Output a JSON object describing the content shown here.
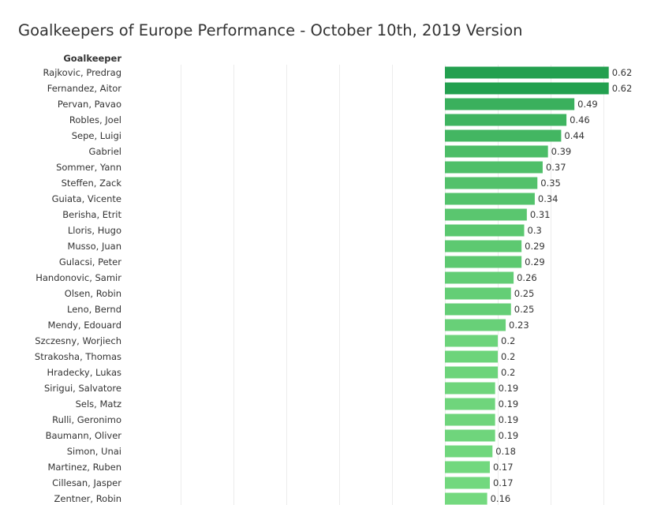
{
  "chart_data": {
    "type": "bar",
    "orientation": "horizontal",
    "title": "Goalkeepers of Europe Performance - October 10th, 2019 Version",
    "row_header": "Goalkeeper",
    "categories": [
      "Rajkovic, Predrag",
      "Fernandez, Aitor",
      "Pervan, Pavao",
      "Robles, Joel",
      "Sepe, Luigi",
      "Gabriel",
      "Sommer, Yann",
      "Steffen, Zack",
      "Guiata, Vicente",
      "Berisha, Etrit",
      "Lloris, Hugo",
      "Musso, Juan",
      "Gulacsi, Peter",
      "Handonovic, Samir",
      "Olsen, Robin",
      "Leno, Bernd",
      "Mendy, Edouard",
      "Szczesny, Worjiech",
      "Strakosha, Thomas",
      "Hradecky, Lukas",
      "Sirigui, Salvatore",
      "Sels, Matz",
      "Rulli, Geronimo",
      "Baumann, Oliver",
      "Simon, Unai",
      "Martinez, Ruben",
      "Cillesan, Jasper",
      "Zentner, Robin"
    ],
    "values": [
      0.62,
      0.62,
      0.49,
      0.46,
      0.44,
      0.39,
      0.37,
      0.35,
      0.34,
      0.31,
      0.3,
      0.29,
      0.29,
      0.26,
      0.25,
      0.25,
      0.23,
      0.2,
      0.2,
      0.2,
      0.19,
      0.19,
      0.19,
      0.19,
      0.18,
      0.17,
      0.17,
      0.16
    ],
    "value_labels": [
      "0.62",
      "0.62",
      "0.49",
      "0.46",
      "0.44",
      "0.39",
      "0.37",
      "0.35",
      "0.34",
      "0.31",
      "0.3",
      "0.29",
      "0.29",
      "0.26",
      "0.25",
      "0.25",
      "0.23",
      "0.2",
      "0.2",
      "0.2",
      "0.19",
      "0.19",
      "0.19",
      "0.19",
      "0.18",
      "0.17",
      "0.17",
      "0.16"
    ],
    "xlim": [
      -1.2,
      0.8
    ],
    "grid": true,
    "colors": {
      "high": "#23a04f",
      "low": "#74d97f"
    }
  }
}
